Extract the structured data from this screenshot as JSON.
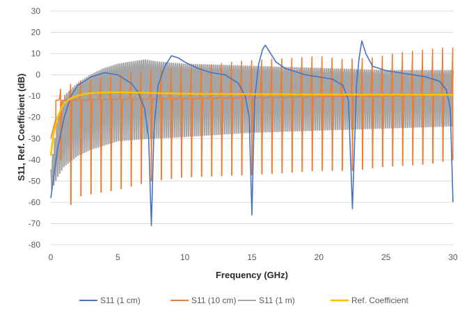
{
  "chart_data": {
    "type": "line",
    "title": "",
    "xlabel": "Frequency (GHz)",
    "ylabel": "S11, Ref. Coefficient (dB)",
    "xlim": [
      0,
      30
    ],
    "ylim": [
      -80,
      30
    ],
    "x_ticks": [
      0,
      5,
      10,
      15,
      20,
      25,
      30
    ],
    "y_ticks": [
      30,
      20,
      10,
      0,
      -10,
      -20,
      -30,
      -40,
      -50,
      -60,
      -70,
      -80
    ],
    "grid": "horizontal",
    "legend_position": "bottom",
    "series": [
      {
        "name": "S11 (1 cm)",
        "color": "#4472C4",
        "x": [
          0.0,
          0.5,
          1.0,
          1.5,
          2.0,
          3.0,
          4.0,
          5.0,
          6.0,
          6.5,
          7.0,
          7.3,
          7.5,
          7.7,
          8.0,
          8.5,
          9.0,
          9.5,
          10.0,
          11.0,
          12.0,
          13.0,
          14.0,
          14.5,
          14.8,
          15.0,
          15.2,
          15.5,
          15.8,
          16.0,
          16.3,
          16.8,
          17.5,
          19.0,
          20.0,
          21.0,
          21.8,
          22.2,
          22.5,
          22.8,
          23.0,
          23.2,
          23.5,
          24.0,
          25.0,
          26.0,
          27.0,
          28.0,
          29.0,
          29.5,
          29.8,
          30.0
        ],
        "y": [
          -58,
          -35,
          -20,
          -10,
          -5,
          -1,
          1,
          0,
          -4,
          -8,
          -16,
          -30,
          -71,
          -25,
          -5,
          4,
          9,
          8,
          6,
          3,
          1,
          0,
          -4,
          -10,
          -20,
          -66,
          -12,
          5,
          12,
          14,
          11,
          6,
          3,
          0,
          -1,
          -2,
          -5,
          -12,
          -63,
          -5,
          8,
          16,
          10,
          4,
          2,
          1,
          0,
          -1,
          -3,
          -7,
          -16,
          -60
        ]
      },
      {
        "name": "S11 (10 cm)",
        "color": "#ED7D31",
        "generated": "periodic resonances every 0.75 GHz",
        "period_ghz": 0.75,
        "peak_envelope": {
          "x": [
            0.75,
            2,
            4,
            6,
            8,
            10,
            12,
            14,
            16,
            18,
            20,
            22,
            24,
            26,
            28,
            29.25
          ],
          "y": [
            -5,
            0,
            2,
            5,
            7,
            9,
            10,
            12,
            13,
            14,
            15,
            13,
            14,
            17,
            19,
            20
          ]
        },
        "trough_envelope": {
          "x": [
            0.75,
            1.5,
            2.25,
            3,
            5,
            7.5,
            10,
            15,
            20,
            22.5,
            25,
            28,
            30
          ],
          "y": [
            -40,
            -61,
            -57,
            -56,
            -54,
            -50,
            -48,
            -47,
            -45,
            -45,
            -43,
            -42,
            -40
          ]
        },
        "base_level": -12
      },
      {
        "name": "S11 (1 m)",
        "color": "#A5A5A5",
        "generated": "dense oscillation every 0.15 GHz",
        "period_ghz": 0.15,
        "upper_envelope": {
          "x": [
            0,
            0.5,
            1,
            2,
            3,
            4,
            5,
            6,
            7,
            8,
            10,
            15,
            20,
            25,
            30
          ],
          "y": [
            -45,
            -20,
            -10,
            -4,
            0,
            3,
            5,
            6,
            7,
            6,
            5,
            4,
            3,
            2,
            2
          ]
        },
        "lower_envelope": {
          "x": [
            0,
            0.5,
            1,
            2,
            3,
            4,
            5,
            7,
            10,
            15,
            20,
            25,
            30
          ],
          "y": [
            -55,
            -48,
            -43,
            -38,
            -35,
            -33,
            -31,
            -30,
            -29,
            -27,
            -26,
            -25,
            -24
          ]
        }
      },
      {
        "name": "Ref. Coefficient",
        "color": "#FFC000",
        "x": [
          0.0,
          0.2,
          0.5,
          0.8,
          1.0,
          1.5,
          2.0,
          2.5,
          3.0,
          4.0,
          5.0,
          6.0,
          8.0,
          10.0,
          15.0,
          20.0,
          25.0,
          30.0
        ],
        "y": [
          -38,
          -28,
          -20,
          -15.5,
          -13.5,
          -11,
          -9.8,
          -9,
          -8.6,
          -8.3,
          -8.2,
          -8.3,
          -8.6,
          -8.9,
          -9.1,
          -9.2,
          -9.3,
          -9.4
        ]
      }
    ]
  }
}
